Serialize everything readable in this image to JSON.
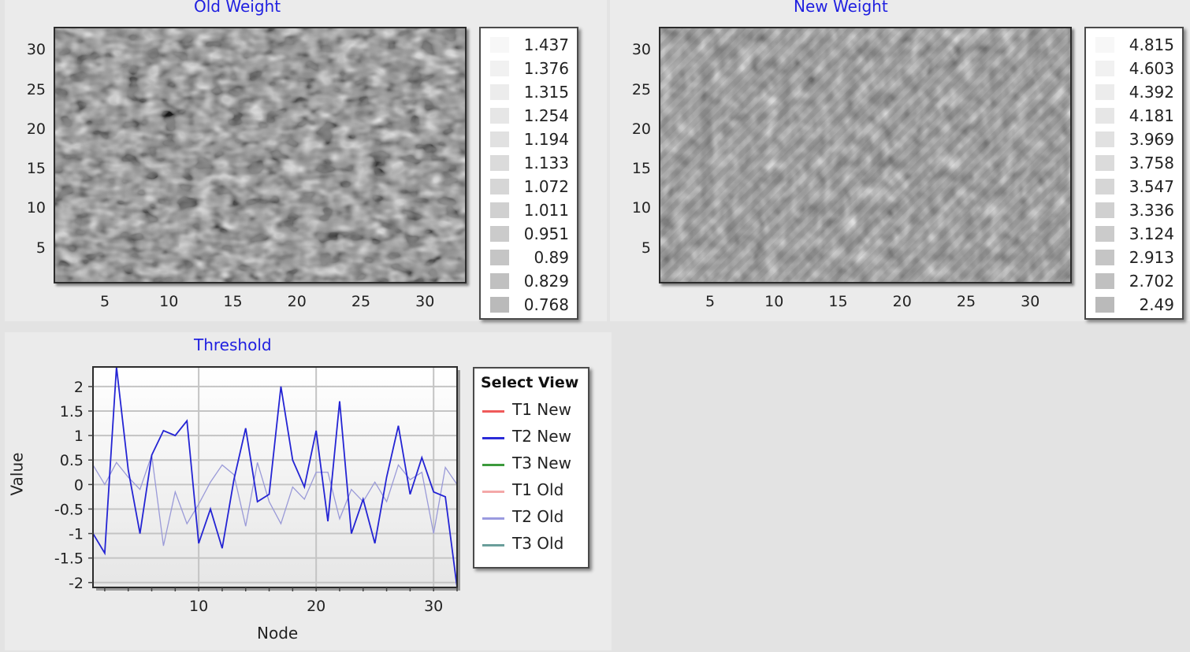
{
  "panels": {
    "old_weight": {
      "title": "Old Weight",
      "xticks": [
        "5",
        "10",
        "15",
        "20",
        "25",
        "30"
      ],
      "yticks": [
        "30",
        "25",
        "20",
        "15",
        "10",
        "5"
      ],
      "legend": [
        "1.437",
        "1.376",
        "1.315",
        "1.254",
        "1.194",
        "1.133",
        "1.072",
        "1.011",
        "0.951",
        "0.89",
        "0.829",
        "0.768"
      ],
      "swatch_colors": [
        "#f7f7f7",
        "#f1f1f1",
        "#ececec",
        "#e6e6e6",
        "#e1e1e1",
        "#dbdbdb",
        "#d6d6d6",
        "#d0d0d0",
        "#cbcbcb",
        "#c5c5c5",
        "#c0c0c0",
        "#bababa"
      ]
    },
    "new_weight": {
      "title": "New Weight",
      "xticks": [
        "5",
        "10",
        "15",
        "20",
        "25",
        "30"
      ],
      "yticks": [
        "30",
        "25",
        "20",
        "15",
        "10",
        "5"
      ],
      "legend": [
        "4.815",
        "4.603",
        "4.392",
        "4.181",
        "3.969",
        "3.758",
        "3.547",
        "3.336",
        "3.124",
        "2.913",
        "2.702",
        "2.49"
      ],
      "swatch_colors": [
        "#f7f7f7",
        "#f1f1f1",
        "#ececec",
        "#e6e6e6",
        "#e1e1e1",
        "#dbdbdb",
        "#d6d6d6",
        "#d0d0d0",
        "#cbcbcb",
        "#c5c5c5",
        "#c0c0c0",
        "#bababa"
      ]
    },
    "threshold": {
      "title": "Threshold",
      "xlabel": "Node",
      "ylabel": "Value",
      "legend_title": "Select View",
      "legend_items": [
        {
          "label": "T1 New",
          "color": "#ef5a5a"
        },
        {
          "label": "T2 New",
          "color": "#2b2bd8"
        },
        {
          "label": "T3 New",
          "color": "#3c9a3c"
        },
        {
          "label": "T1 Old",
          "color": "#f4a8a8"
        },
        {
          "label": "T2 Old",
          "color": "#9a9ae0"
        },
        {
          "label": "T3 Old",
          "color": "#6a9e9a"
        }
      ]
    }
  },
  "chart_data": [
    {
      "type": "heatmap",
      "title": "Old Weight",
      "xlim": [
        1,
        33
      ],
      "ylim": [
        1,
        33
      ],
      "xticks": [
        5,
        10,
        15,
        20,
        25,
        30
      ],
      "yticks": [
        5,
        10,
        15,
        20,
        25,
        30
      ],
      "colorbar_levels": [
        1.437,
        1.376,
        1.315,
        1.254,
        1.194,
        1.133,
        1.072,
        1.011,
        0.951,
        0.89,
        0.829,
        0.768
      ],
      "colormap": "grayscale"
    },
    {
      "type": "heatmap",
      "title": "New Weight",
      "xlim": [
        1,
        33
      ],
      "ylim": [
        1,
        33
      ],
      "xticks": [
        5,
        10,
        15,
        20,
        25,
        30
      ],
      "yticks": [
        5,
        10,
        15,
        20,
        25,
        30
      ],
      "colorbar_levels": [
        4.815,
        4.603,
        4.392,
        4.181,
        3.969,
        3.758,
        3.547,
        3.336,
        3.124,
        2.913,
        2.702,
        2.49
      ],
      "colormap": "grayscale"
    },
    {
      "type": "line",
      "title": "Threshold",
      "xlabel": "Node",
      "ylabel": "Value",
      "xlim": [
        1,
        32
      ],
      "ylim": [
        -2.1,
        2.4
      ],
      "xticks": [
        10,
        20,
        30
      ],
      "yticks": [
        2,
        1.5,
        1,
        0.5,
        0,
        -0.5,
        -1,
        -1.5,
        -2
      ],
      "ytick_labels": [
        "2",
        "1.5",
        "1",
        "0.5",
        "0",
        "-0.5",
        "-1",
        "-1.5",
        "-2"
      ],
      "grid": true,
      "legend_placement": "right",
      "x": [
        1,
        2,
        3,
        4,
        5,
        6,
        7,
        8,
        9,
        10,
        11,
        12,
        13,
        14,
        15,
        16,
        17,
        18,
        19,
        20,
        21,
        22,
        23,
        24,
        25,
        26,
        27,
        28,
        29,
        30,
        31,
        32
      ],
      "series": [
        {
          "name": "T2 New",
          "color": "#2424d4",
          "values": [
            -1.0,
            -1.4,
            2.4,
            0.3,
            -1.0,
            0.6,
            1.1,
            1.0,
            1.3,
            -1.2,
            -0.5,
            -1.3,
            0.1,
            1.15,
            -0.35,
            -0.2,
            2.0,
            0.5,
            -0.05,
            1.1,
            -0.75,
            1.7,
            -1.0,
            -0.3,
            -1.2,
            0.15,
            1.2,
            -0.2,
            0.55,
            -0.15,
            -0.25,
            -2.1
          ]
        },
        {
          "name": "T2 Old",
          "color": "#9a9ad8",
          "values": [
            0.4,
            0.0,
            0.45,
            0.15,
            -0.1,
            0.6,
            -1.25,
            -0.15,
            -0.8,
            -0.4,
            0.05,
            0.4,
            0.2,
            -0.85,
            0.45,
            -0.35,
            -0.8,
            -0.05,
            -0.3,
            0.25,
            0.25,
            -0.7,
            -0.1,
            -0.35,
            0.05,
            -0.35,
            0.4,
            0.1,
            0.25,
            -1.0,
            0.35,
            0.0
          ]
        }
      ]
    }
  ]
}
